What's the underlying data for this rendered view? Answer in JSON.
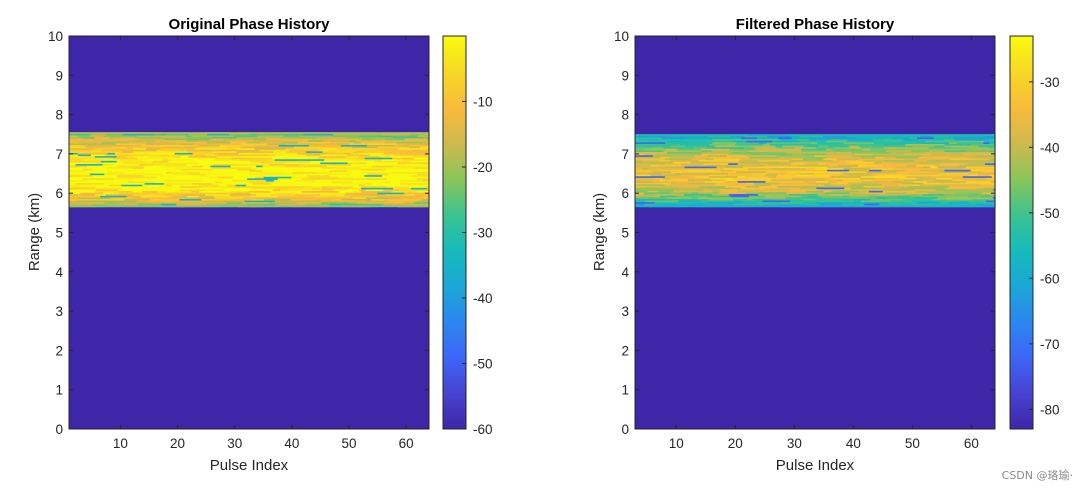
{
  "watermark": "CSDN @珞瑜·",
  "colors": {
    "background_fill": "#3d26a8",
    "axis_color": "#262626",
    "parula": [
      "#3e26a8",
      "#4743d0",
      "#3d66f7",
      "#2b87ef",
      "#1ca7d6",
      "#17bbbb",
      "#3cc390",
      "#8ac65a",
      "#cfb94e",
      "#f9bb3b",
      "#f7d925",
      "#f9fb0e"
    ]
  },
  "chart_data": [
    {
      "type": "heatmap",
      "title": "Original Phase History",
      "xlabel": "Pulse Index",
      "ylabel": "Range (km)",
      "xlim": [
        1,
        64
      ],
      "ylim": [
        0,
        10
      ],
      "xticks": [
        10,
        20,
        30,
        40,
        50,
        60
      ],
      "yticks": [
        0,
        1,
        2,
        3,
        4,
        5,
        6,
        7,
        8,
        9,
        10
      ],
      "band": {
        "range_km": [
          5.65,
          7.55
        ],
        "peak_range_km": 6.4,
        "peak_level": 0,
        "edge_level": -25
      },
      "colorbar": {
        "limits": [
          -60,
          0
        ],
        "ticks": [
          -60,
          -50,
          -40,
          -30,
          -20,
          -10
        ],
        "tick_labels": [
          "-60",
          "-50",
          "-40",
          "-30",
          "-20",
          "-10"
        ]
      }
    },
    {
      "type": "heatmap",
      "title": "Filtered Phase History",
      "xlabel": "Pulse Index",
      "ylabel": "Range (km)",
      "xlim": [
        3,
        64
      ],
      "ylim": [
        0,
        10
      ],
      "xticks": [
        10,
        20,
        30,
        40,
        50,
        60
      ],
      "yticks": [
        0,
        1,
        2,
        3,
        4,
        5,
        6,
        7,
        8,
        9,
        10
      ],
      "band": {
        "range_km": [
          5.65,
          7.5
        ],
        "peak_range_km": 6.45,
        "peak_level": -34,
        "edge_level": -62
      },
      "colorbar": {
        "limits": [
          -83,
          -23
        ],
        "ticks": [
          -80,
          -70,
          -60,
          -50,
          -40,
          -30
        ],
        "tick_labels": [
          "-80",
          "-70",
          "-60",
          "-50",
          "-40",
          "-30"
        ]
      }
    }
  ]
}
